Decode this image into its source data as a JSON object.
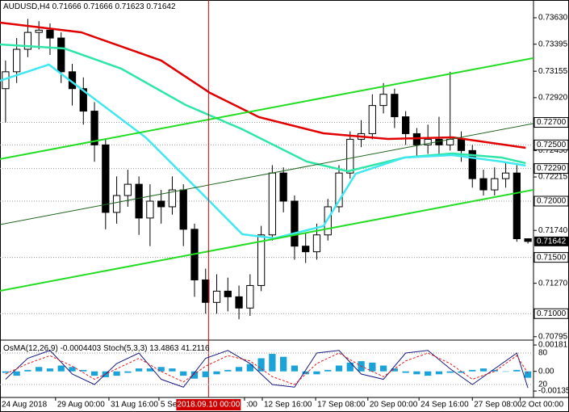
{
  "chart_data": [
    {
      "type": "candlestick",
      "title": "AUDUSD,H4",
      "xlim": [
        -0.5,
        47.5
      ],
      "ylim": [
        0.70772,
        0.73788
      ],
      "yticks": [
        {
          "value": 0.7363,
          "label": "0.73630"
        },
        0.73395,
        0.73155,
        {
          "value": 0.7292,
          "label": "0.72920"
        },
        {
          "value": 0.7245,
          "label": "0.72450"
        },
        0.72215,
        {
          "value": 0.7174,
          "label": "0.71740"
        },
        {
          "value": 0.7127,
          "label": "0.71270"
        },
        0.70795
      ],
      "levels": [
        {
          "value": 0.727,
          "label": "0.72700"
        },
        {
          "value": 0.725,
          "label": "0.72500"
        },
        {
          "value": 0.7229,
          "label": "0.72290"
        },
        {
          "value": 0.72,
          "label": "0.72000"
        },
        {
          "value": 0.715,
          "label": "0.71500"
        },
        {
          "value": 0.71,
          "label": "0.71000"
        }
      ],
      "xticks": [
        {
          "value": -0.5,
          "label": "24 Aug 2018"
        },
        {
          "value": 4.5,
          "label": "29 Aug 00:00"
        },
        {
          "value": 9.3,
          "label": "31 Aug 16:00"
        },
        {
          "value": 13.8,
          "label": "5 Sep"
        },
        {
          "value": 21.5,
          "label": ":00"
        },
        {
          "value": 23.1,
          "label": "12 Sep 16:00"
        },
        {
          "value": 27.9,
          "label": "17 Sep 08:00"
        },
        {
          "value": 32.6,
          "label": "20 Sep 00:00"
        },
        {
          "value": 37.2,
          "label": "24 Sep 16:00"
        },
        {
          "value": 42,
          "label": "27 Sep 08:00"
        },
        {
          "value": 46.3,
          "label": "2 Oct 00:00"
        }
      ],
      "cursor": {
        "x": 18.26,
        "label": "2018.09.10 00:00"
      },
      "candles": [
        {
          "open": 0.73,
          "high": 0.7325,
          "low": 0.727,
          "close": 0.7315
        },
        {
          "open": 0.7315,
          "high": 0.7345,
          "low": 0.7305,
          "close": 0.7335
        },
        {
          "open": 0.7335,
          "high": 0.7362,
          "low": 0.7328,
          "close": 0.735
        },
        {
          "open": 0.735,
          "high": 0.736,
          "low": 0.7335,
          "close": 0.7352
        },
        {
          "open": 0.7352,
          "high": 0.7358,
          "low": 0.733,
          "close": 0.7345
        },
        {
          "open": 0.7345,
          "high": 0.735,
          "low": 0.7305,
          "close": 0.7315
        },
        {
          "open": 0.7315,
          "high": 0.7322,
          "low": 0.7285,
          "close": 0.73
        },
        {
          "open": 0.73,
          "high": 0.731,
          "low": 0.7268,
          "close": 0.728
        },
        {
          "open": 0.728,
          "high": 0.7288,
          "low": 0.7235,
          "close": 0.725
        },
        {
          "open": 0.725,
          "high": 0.7255,
          "low": 0.7175,
          "close": 0.719
        },
        {
          "open": 0.719,
          "high": 0.7222,
          "low": 0.718,
          "close": 0.7205
        },
        {
          "open": 0.7205,
          "high": 0.7228,
          "low": 0.7195,
          "close": 0.7215
        },
        {
          "open": 0.7215,
          "high": 0.7222,
          "low": 0.717,
          "close": 0.7185
        },
        {
          "open": 0.7185,
          "high": 0.7215,
          "low": 0.716,
          "close": 0.72
        },
        {
          "open": 0.72,
          "high": 0.721,
          "low": 0.718,
          "close": 0.7195
        },
        {
          "open": 0.7195,
          "high": 0.7222,
          "low": 0.7188,
          "close": 0.721
        },
        {
          "open": 0.721,
          "high": 0.7215,
          "low": 0.716,
          "close": 0.7175
        },
        {
          "open": 0.7175,
          "high": 0.718,
          "low": 0.7115,
          "close": 0.713
        },
        {
          "open": 0.713,
          "high": 0.714,
          "low": 0.71,
          "close": 0.711
        },
        {
          "open": 0.711,
          "high": 0.7135,
          "low": 0.71,
          "close": 0.712
        },
        {
          "open": 0.712,
          "high": 0.7132,
          "low": 0.7102,
          "close": 0.7115
        },
        {
          "open": 0.7115,
          "high": 0.7125,
          "low": 0.7095,
          "close": 0.7105
        },
        {
          "open": 0.7105,
          "high": 0.7135,
          "low": 0.7098,
          "close": 0.7125
        },
        {
          "open": 0.7125,
          "high": 0.7178,
          "low": 0.712,
          "close": 0.717
        },
        {
          "open": 0.717,
          "high": 0.7232,
          "low": 0.7165,
          "close": 0.7225
        },
        {
          "open": 0.7225,
          "high": 0.723,
          "low": 0.719,
          "close": 0.72
        },
        {
          "open": 0.72,
          "high": 0.7205,
          "low": 0.7148,
          "close": 0.716
        },
        {
          "open": 0.716,
          "high": 0.7172,
          "low": 0.7145,
          "close": 0.7155
        },
        {
          "open": 0.7155,
          "high": 0.718,
          "low": 0.7148,
          "close": 0.717
        },
        {
          "open": 0.717,
          "high": 0.7202,
          "low": 0.7165,
          "close": 0.7195
        },
        {
          "open": 0.7195,
          "high": 0.7232,
          "low": 0.719,
          "close": 0.7225
        },
        {
          "open": 0.7225,
          "high": 0.7262,
          "low": 0.722,
          "close": 0.7255
        },
        {
          "open": 0.7255,
          "high": 0.7272,
          "low": 0.7248,
          "close": 0.726
        },
        {
          "open": 0.726,
          "high": 0.7295,
          "low": 0.7255,
          "close": 0.7285
        },
        {
          "open": 0.7285,
          "high": 0.7305,
          "low": 0.7278,
          "close": 0.7295
        },
        {
          "open": 0.7295,
          "high": 0.73,
          "low": 0.7265,
          "close": 0.7275
        },
        {
          "open": 0.7275,
          "high": 0.728,
          "low": 0.725,
          "close": 0.726
        },
        {
          "open": 0.726,
          "high": 0.7265,
          "low": 0.724,
          "close": 0.725
        },
        {
          "open": 0.725,
          "high": 0.7268,
          "low": 0.7242,
          "close": 0.7255
        },
        {
          "open": 0.7255,
          "high": 0.7275,
          "low": 0.724,
          "close": 0.725
        },
        {
          "open": 0.725,
          "high": 0.7315,
          "low": 0.7245,
          "close": 0.7255
        },
        {
          "open": 0.7255,
          "high": 0.7262,
          "low": 0.7235,
          "close": 0.7245
        },
        {
          "open": 0.7245,
          "high": 0.725,
          "low": 0.7212,
          "close": 0.722
        },
        {
          "open": 0.722,
          "high": 0.7228,
          "low": 0.7205,
          "close": 0.721
        },
        {
          "open": 0.721,
          "high": 0.723,
          "low": 0.7205,
          "close": 0.722
        },
        {
          "open": 0.722,
          "high": 0.7235,
          "low": 0.7212,
          "close": 0.7225
        },
        {
          "open": 0.7225,
          "high": 0.7232,
          "low": 0.7164,
          "close": 0.71666
        },
        {
          "open": 0.71666,
          "high": 0.71666,
          "low": 0.71623,
          "close": 0.71642
        }
      ],
      "lines": [
        {
          "color": "#e00000",
          "width": 2.5,
          "x": [
            -0.5,
            6.8,
            14,
            18.4,
            22.8,
            28.6,
            34.4,
            40.2,
            46.8
          ],
          "values": [
            0.73587,
            0.73501,
            0.7325,
            0.72962,
            0.72747,
            0.72603,
            0.72553,
            0.72567,
            0.72474
          ]
        },
        {
          "color": "#2ee6a8",
          "width": 2.5,
          "x": [
            -0.5,
            5.3,
            10.4,
            16.2,
            21.3,
            27.1,
            30.8,
            35.9,
            40.2,
            44.6,
            46.8
          ],
          "values": [
            0.73393,
            0.73357,
            0.73178,
            0.72855,
            0.72639,
            0.72352,
            0.72266,
            0.72388,
            0.72424,
            0.72388,
            0.72338
          ]
        },
        {
          "color": "#40e8f0",
          "width": 2.5,
          "x": [
            -0.5,
            3.9,
            6.8,
            12.6,
            17.7,
            21.3,
            24.2,
            28.6,
            31.5,
            35.9,
            40.2,
            44.6,
            46.8
          ],
          "values": [
            0.7307,
            0.73214,
            0.72998,
            0.72567,
            0.72065,
            0.71706,
            0.7167,
            0.71778,
            0.72244,
            0.72388,
            0.72409,
            0.72352,
            0.72316
          ]
        },
        {
          "color": "#22dd22",
          "width": 2,
          "x": [
            -0.5,
            47.5
          ],
          "values": [
            0.72374,
            0.73272
          ]
        },
        {
          "color": "#22dd22",
          "width": 2,
          "x": [
            -0.5,
            47.5
          ],
          "values": [
            0.71203,
            0.72101
          ]
        },
        {
          "color": "#226622",
          "width": 1,
          "x": [
            -0.5,
            47.5
          ],
          "values": [
            0.71792,
            0.7269
          ]
        }
      ]
    },
    {
      "type": "bar",
      "osma_label": "OsMA(12,26,9)",
      "stoch_label": "Stoch(5,3,3)",
      "color": "#1aa3d9",
      "ylim": [
        -0.00179,
        0.00209
      ],
      "yticks": [
        0.00181,
        {
          "value": 0,
          "label": "0.00"
        },
        -0.00135
      ],
      "y2lim": [
        -4.6,
        103.1
      ],
      "y2ticks": [
        80,
        20
      ],
      "values": [
        -0.0001,
        -0.0003,
        0.0001,
        0.0003,
        0.0002,
        0.0004,
        0.0003,
        0.0001,
        -0.0003,
        -0.0004,
        -0.0003,
        -0.0001,
        0.0002,
        0.0002,
        0.0003,
        0.0002,
        -0.0003,
        -0.0005,
        -0.0004,
        -0.0002,
        0.0001,
        0.0003,
        0.0005,
        0.0009,
        0.0012,
        0.001,
        0.0004,
        -0.0002,
        -0.0002,
        0.0001,
        0.0004,
        0.0006,
        0.0007,
        0.0006,
        0.0004,
        0.0002,
        -0.0001,
        -0.0002,
        -0.0003,
        -0.0002,
        -0.0001,
        -0.0001,
        0.0001,
        0.0002,
        0.0001,
        0,
        0.0001,
        -0.0004403
      ],
      "series": [
        {
          "color": "#1a1a80",
          "axis": "y2",
          "x": [
            0,
            2,
            4,
            6,
            8,
            10,
            12,
            14,
            16,
            18,
            20,
            22,
            24,
            26,
            28,
            30,
            32,
            34,
            36,
            38,
            40,
            42,
            44,
            46,
            47
          ],
          "values": [
            30,
            70,
            85,
            40,
            20,
            60,
            80,
            30,
            15,
            70,
            85,
            60,
            20,
            15,
            80,
            85,
            40,
            30,
            80,
            85,
            50,
            20,
            50,
            80,
            13.4863
          ]
        },
        {
          "color": "#e02020",
          "axis": "y2",
          "dash": true,
          "x": [
            0,
            2,
            4,
            6,
            8,
            10,
            12,
            14,
            16,
            18,
            20,
            22,
            24,
            26,
            28,
            30,
            32,
            34,
            36,
            38,
            40,
            42,
            44,
            46,
            47
          ],
          "values": [
            40,
            60,
            75,
            55,
            30,
            50,
            70,
            45,
            25,
            55,
            75,
            65,
            35,
            20,
            60,
            80,
            55,
            35,
            65,
            80,
            60,
            30,
            45,
            75,
            41.2116
          ]
        }
      ]
    }
  ]
}
